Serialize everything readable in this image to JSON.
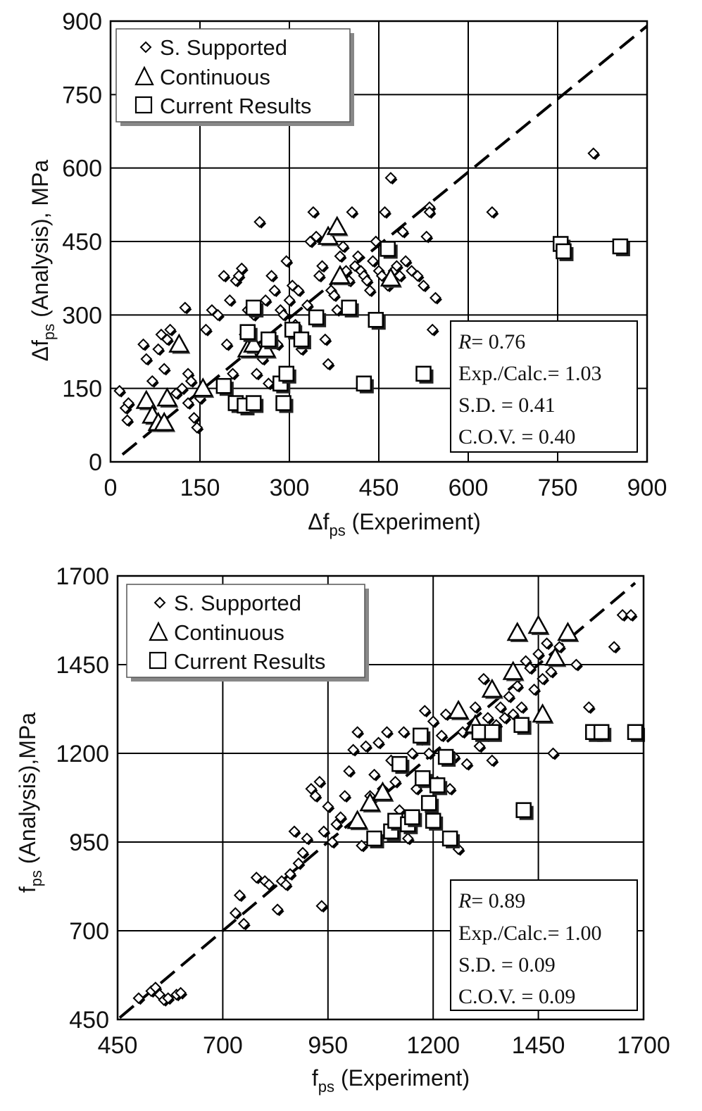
{
  "chart_data": [
    {
      "type": "scatter",
      "title": "",
      "xlabel": "Δf",
      "xlabel_sub": "ps",
      "xlabel_suffix": " (Experiment)",
      "ylabel": "Δf",
      "ylabel_sub": "ps",
      "ylabel_suffix": " (Analysis), MPa",
      "xlim": [
        0,
        900
      ],
      "ylim": [
        0,
        900
      ],
      "xticks": [
        "0",
        "150",
        "300",
        "450",
        "600",
        "750",
        "900"
      ],
      "yticks": [
        "0",
        "150",
        "300",
        "450",
        "600",
        "750",
        "900"
      ],
      "grid": true,
      "legend_position": "top-left",
      "reference_line": {
        "style": "dashed",
        "from": [
          20,
          15
        ],
        "to": [
          900,
          890
        ]
      },
      "stats": [
        "= 0.76",
        "Exp./Calc.= 1.03",
        "S.D. = 0.41",
        "C.O.V. = 0.40"
      ],
      "stats_R_symbol": "R",
      "series": [
        {
          "name": "S. Supported",
          "marker": "diamond",
          "points": [
            [
              15,
              145
            ],
            [
              25,
              110
            ],
            [
              30,
              120
            ],
            [
              28,
              85
            ],
            [
              55,
              240
            ],
            [
              60,
              210
            ],
            [
              70,
              165
            ],
            [
              80,
              230
            ],
            [
              85,
              260
            ],
            [
              90,
              190
            ],
            [
              95,
              250
            ],
            [
              100,
              270
            ],
            [
              110,
              140
            ],
            [
              120,
              150
            ],
            [
              125,
              315
            ],
            [
              130,
              120
            ],
            [
              130,
              180
            ],
            [
              135,
              165
            ],
            [
              140,
              90
            ],
            [
              145,
              70
            ],
            [
              150,
              130
            ],
            [
              160,
              270
            ],
            [
              170,
              310
            ],
            [
              180,
              300
            ],
            [
              190,
              380
            ],
            [
              195,
              240
            ],
            [
              200,
              330
            ],
            [
              205,
              180
            ],
            [
              210,
              370
            ],
            [
              215,
              380
            ],
            [
              220,
              395
            ],
            [
              225,
              260
            ],
            [
              230,
              310
            ],
            [
              235,
              230
            ],
            [
              240,
              300
            ],
            [
              245,
              180
            ],
            [
              250,
              490
            ],
            [
              255,
              210
            ],
            [
              260,
              330
            ],
            [
              265,
              160
            ],
            [
              270,
              380
            ],
            [
              275,
              350
            ],
            [
              280,
              240
            ],
            [
              285,
              310
            ],
            [
              290,
              300
            ],
            [
              295,
              410
            ],
            [
              300,
              330
            ],
            [
              305,
              360
            ],
            [
              310,
              280
            ],
            [
              315,
              350
            ],
            [
              320,
              230
            ],
            [
              330,
              320
            ],
            [
              335,
              450
            ],
            [
              340,
              510
            ],
            [
              345,
              460
            ],
            [
              350,
              380
            ],
            [
              355,
              400
            ],
            [
              360,
              250
            ],
            [
              365,
              200
            ],
            [
              370,
              350
            ],
            [
              375,
              340
            ],
            [
              380,
              310
            ],
            [
              385,
              420
            ],
            [
              390,
              440
            ],
            [
              395,
              390
            ],
            [
              400,
              370
            ],
            [
              405,
              510
            ],
            [
              410,
              400
            ],
            [
              415,
              420
            ],
            [
              420,
              390
            ],
            [
              425,
              380
            ],
            [
              430,
              370
            ],
            [
              435,
              350
            ],
            [
              440,
              410
            ],
            [
              445,
              450
            ],
            [
              450,
              390
            ],
            [
              455,
              380
            ],
            [
              460,
              510
            ],
            [
              465,
              360
            ],
            [
              470,
              580
            ],
            [
              475,
              390
            ],
            [
              480,
              400
            ],
            [
              485,
              380
            ],
            [
              490,
              470
            ],
            [
              495,
              410
            ],
            [
              505,
              390
            ],
            [
              515,
              380
            ],
            [
              525,
              360
            ],
            [
              530,
              460
            ],
            [
              535,
              520
            ],
            [
              535,
              510
            ],
            [
              540,
              270
            ],
            [
              545,
              335
            ],
            [
              640,
              510
            ],
            [
              810,
              630
            ]
          ]
        },
        {
          "name": "Continuous",
          "marker": "triangle",
          "points": [
            [
              60,
              125
            ],
            [
              70,
              95
            ],
            [
              80,
              80
            ],
            [
              90,
              80
            ],
            [
              95,
              130
            ],
            [
              115,
              240
            ],
            [
              155,
              150
            ],
            [
              230,
              230
            ],
            [
              240,
              240
            ],
            [
              260,
              230
            ],
            [
              365,
              460
            ],
            [
              380,
              480
            ],
            [
              385,
              380
            ],
            [
              470,
              375
            ]
          ]
        },
        {
          "name": "Current Results",
          "marker": "square",
          "points": [
            [
              190,
              155
            ],
            [
              210,
              120
            ],
            [
              225,
              115
            ],
            [
              230,
              265
            ],
            [
              240,
              120
            ],
            [
              240,
              315
            ],
            [
              265,
              250
            ],
            [
              285,
              160
            ],
            [
              290,
              120
            ],
            [
              295,
              180
            ],
            [
              305,
              270
            ],
            [
              320,
              250
            ],
            [
              345,
              295
            ],
            [
              400,
              315
            ],
            [
              425,
              160
            ],
            [
              445,
              290
            ],
            [
              465,
              435
            ],
            [
              525,
              180
            ],
            [
              755,
              445
            ],
            [
              760,
              430
            ],
            [
              855,
              440
            ]
          ]
        }
      ]
    },
    {
      "type": "scatter",
      "title": "",
      "xlabel": "f",
      "xlabel_sub": "ps",
      "xlabel_suffix": " (Experiment)",
      "ylabel": "f",
      "ylabel_sub": "ps",
      "ylabel_suffix": " (Analysis),MPa",
      "xlim": [
        450,
        1700
      ],
      "ylim": [
        450,
        1700
      ],
      "xticks": [
        "450",
        "700",
        "950",
        "1200",
        "1450",
        "1700"
      ],
      "yticks": [
        "450",
        "700",
        "950",
        "1200",
        "1450",
        "1700"
      ],
      "grid": true,
      "legend_position": "top-left",
      "reference_line": {
        "style": "dashed",
        "from": [
          455,
          455
        ],
        "to": [
          1680,
          1680
        ]
      },
      "stats": [
        "= 0.89",
        "Exp./Calc.= 1.00",
        "S.D. = 0.09",
        "C.O.V. = 0.09"
      ],
      "stats_R_symbol": "R",
      "series": [
        {
          "name": "S. Supported",
          "marker": "diamond",
          "points": [
            [
              500,
              510
            ],
            [
              530,
              530
            ],
            [
              540,
              540
            ],
            [
              550,
              520
            ],
            [
              560,
              505
            ],
            [
              570,
              510
            ],
            [
              590,
              520
            ],
            [
              600,
              525
            ],
            [
              730,
              750
            ],
            [
              740,
              800
            ],
            [
              750,
              720
            ],
            [
              780,
              850
            ],
            [
              800,
              840
            ],
            [
              810,
              830
            ],
            [
              830,
              760
            ],
            [
              840,
              840
            ],
            [
              850,
              830
            ],
            [
              860,
              860
            ],
            [
              870,
              980
            ],
            [
              880,
              890
            ],
            [
              890,
              920
            ],
            [
              900,
              960
            ],
            [
              910,
              1100
            ],
            [
              920,
              1080
            ],
            [
              930,
              1120
            ],
            [
              935,
              770
            ],
            [
              940,
              980
            ],
            [
              950,
              1050
            ],
            [
              960,
              950
            ],
            [
              970,
              1000
            ],
            [
              980,
              1020
            ],
            [
              990,
              1080
            ],
            [
              1000,
              1150
            ],
            [
              1010,
              1210
            ],
            [
              1020,
              1260
            ],
            [
              1030,
              940
            ],
            [
              1040,
              1220
            ],
            [
              1050,
              1080
            ],
            [
              1060,
              1140
            ],
            [
              1070,
              1230
            ],
            [
              1080,
              1100
            ],
            [
              1090,
              1260
            ],
            [
              1100,
              1180
            ],
            [
              1110,
              1120
            ],
            [
              1120,
              1040
            ],
            [
              1130,
              1260
            ],
            [
              1140,
              960
            ],
            [
              1150,
              1200
            ],
            [
              1160,
              1100
            ],
            [
              1170,
              1240
            ],
            [
              1180,
              1320
            ],
            [
              1190,
              1200
            ],
            [
              1200,
              1290
            ],
            [
              1210,
              1120
            ],
            [
              1220,
              1250
            ],
            [
              1230,
              1310
            ],
            [
              1240,
              1100
            ],
            [
              1250,
              1190
            ],
            [
              1260,
              930
            ],
            [
              1270,
              1260
            ],
            [
              1280,
              1170
            ],
            [
              1290,
              1270
            ],
            [
              1300,
              1330
            ],
            [
              1310,
              1220
            ],
            [
              1320,
              1410
            ],
            [
              1330,
              1300
            ],
            [
              1340,
              1180
            ],
            [
              1350,
              1280
            ],
            [
              1360,
              1330
            ],
            [
              1370,
              1300
            ],
            [
              1380,
              1360
            ],
            [
              1390,
              1310
            ],
            [
              1400,
              1390
            ],
            [
              1410,
              1330
            ],
            [
              1420,
              1460
            ],
            [
              1430,
              1440
            ],
            [
              1440,
              1380
            ],
            [
              1450,
              1480
            ],
            [
              1460,
              1410
            ],
            [
              1470,
              1510
            ],
            [
              1480,
              1430
            ],
            [
              1485,
              1200
            ],
            [
              1500,
              1500
            ],
            [
              1540,
              1450
            ],
            [
              1570,
              1330
            ],
            [
              1630,
              1500
            ],
            [
              1650,
              1590
            ],
            [
              1670,
              1590
            ]
          ]
        },
        {
          "name": "Continuous",
          "marker": "triangle",
          "points": [
            [
              1020,
              1010
            ],
            [
              1050,
              1060
            ],
            [
              1080,
              1090
            ],
            [
              1260,
              1320
            ],
            [
              1300,
              1280
            ],
            [
              1340,
              1380
            ],
            [
              1390,
              1430
            ],
            [
              1400,
              1540
            ],
            [
              1450,
              1560
            ],
            [
              1460,
              1310
            ],
            [
              1490,
              1470
            ],
            [
              1520,
              1540
            ]
          ]
        },
        {
          "name": "Current Results",
          "marker": "square",
          "points": [
            [
              1060,
              960
            ],
            [
              1100,
              980
            ],
            [
              1110,
              1010
            ],
            [
              1120,
              1170
            ],
            [
              1140,
              1000
            ],
            [
              1150,
              1020
            ],
            [
              1170,
              1250
            ],
            [
              1175,
              1130
            ],
            [
              1190,
              1060
            ],
            [
              1200,
              1010
            ],
            [
              1210,
              1110
            ],
            [
              1230,
              1190
            ],
            [
              1240,
              960
            ],
            [
              1310,
              1260
            ],
            [
              1340,
              1260
            ],
            [
              1410,
              1280
            ],
            [
              1415,
              1040
            ],
            [
              1580,
              1260
            ],
            [
              1600,
              1260
            ],
            [
              1680,
              1260
            ]
          ]
        }
      ]
    }
  ]
}
